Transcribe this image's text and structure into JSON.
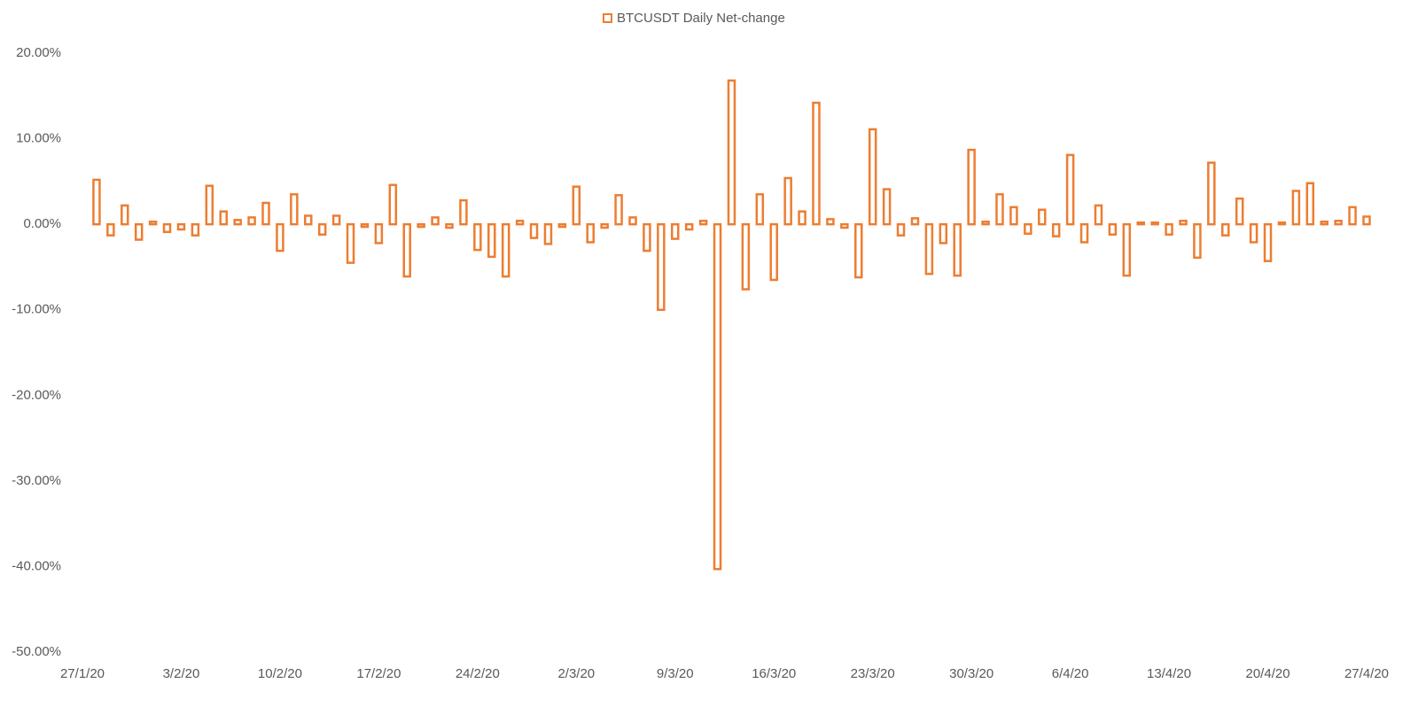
{
  "chart_data": {
    "type": "bar",
    "categories": [
      "27/1/20",
      null,
      null,
      null,
      null,
      null,
      null,
      "3/2/20",
      null,
      null,
      null,
      null,
      null,
      null,
      "10/2/20",
      null,
      null,
      null,
      null,
      null,
      null,
      "17/2/20",
      null,
      null,
      null,
      null,
      null,
      null,
      "24/2/20",
      null,
      null,
      null,
      null,
      null,
      null,
      "2/3/20",
      null,
      null,
      null,
      null,
      null,
      null,
      "9/3/20",
      null,
      null,
      null,
      null,
      null,
      null,
      "16/3/20",
      null,
      null,
      null,
      null,
      null,
      null,
      "23/3/20",
      null,
      null,
      null,
      null,
      null,
      null,
      "30/3/20",
      null,
      null,
      null,
      null,
      null,
      null,
      "6/4/20",
      null,
      null,
      null,
      null,
      null,
      null,
      "13/4/20",
      null,
      null,
      null,
      null,
      null,
      null,
      "20/4/20",
      null,
      null,
      null,
      null,
      null,
      null,
      "27/4/20"
    ],
    "series": [
      {
        "name": "BTCUSDT Daily Net-change",
        "color": "#ED7D31",
        "values": [
          null,
          5.2,
          -1.3,
          2.2,
          -1.8,
          0.3,
          -0.9,
          -0.6,
          -1.3,
          4.5,
          1.5,
          0.5,
          0.8,
          2.5,
          -3.1,
          3.5,
          1.0,
          -1.2,
          1.0,
          -4.5,
          -0.3,
          -2.2,
          4.6,
          -6.1,
          -0.3,
          0.8,
          -0.4,
          2.8,
          -3.0,
          -3.8,
          -6.1,
          0.4,
          -1.6,
          -2.3,
          -0.3,
          4.4,
          -2.1,
          -0.4,
          3.4,
          0.8,
          -3.1,
          -10.0,
          -1.7,
          -0.6,
          0.4,
          -40.3,
          16.8,
          -7.6,
          3.5,
          -6.5,
          5.4,
          1.5,
          14.2,
          0.6,
          -0.4,
          -6.2,
          11.1,
          4.1,
          -1.3,
          0.7,
          -5.8,
          -2.2,
          -6.0,
          8.7,
          0.3,
          3.5,
          2.0,
          -1.1,
          1.7,
          -1.4,
          8.1,
          -2.1,
          2.2,
          -1.2,
          -6.0,
          0.2,
          0.2,
          -1.2,
          0.4,
          -3.9,
          7.2,
          -1.3,
          3.0,
          -2.1,
          -4.3,
          0.2,
          3.9,
          4.8,
          0.3,
          0.4,
          2.0,
          0.9
        ]
      }
    ],
    "ylim": [
      -50,
      20
    ],
    "yticks": [
      {
        "value": -50,
        "label": "-50.00%"
      },
      {
        "value": -40,
        "label": "-40.00%"
      },
      {
        "value": -30,
        "label": "-30.00%"
      },
      {
        "value": -20,
        "label": "-20.00%"
      },
      {
        "value": -10,
        "label": "-10.00%"
      },
      {
        "value": 0,
        "label": "0.00%"
      },
      {
        "value": 10,
        "label": "10.00%"
      },
      {
        "value": 20,
        "label": "20.00%"
      }
    ],
    "grid": false,
    "legend": "top"
  }
}
